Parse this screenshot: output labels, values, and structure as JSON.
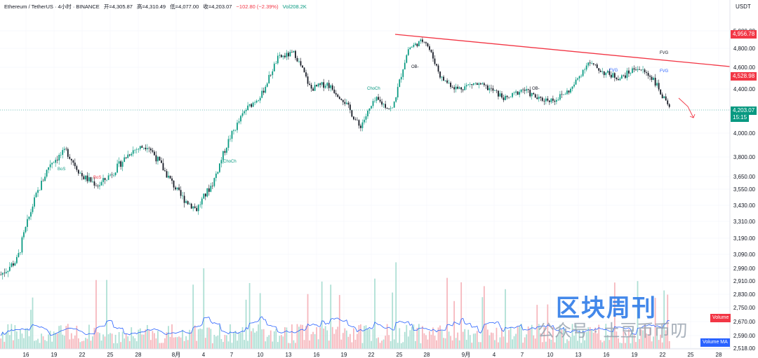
{
  "header": {
    "symbol": "Ethereum / TetherUS · 4小时 · BINANCE",
    "open": "开=4,305.87",
    "high": "高=4,310.49",
    "low": "低=4,077.00",
    "close": "收=4,203.07",
    "change": "−102.80 (−2.39%)",
    "volume": "Vol208.2K",
    "unit": "USDT"
  },
  "price_tags": {
    "upper": "4,956.78",
    "middle": "4,528.98",
    "current": "4,203.07",
    "countdown": "15:15"
  },
  "watermark": {
    "title": "区块周刊",
    "subtitle": "公众号 · 土豆币币叨"
  },
  "volume_labels": {
    "volume": "Volume",
    "volume_ma": "Volume MA"
  },
  "colors": {
    "up": "#089981",
    "down": "#f23645",
    "trendline": "#f23645",
    "volume_ma": "#2962ff"
  },
  "chart_data": {
    "type": "line",
    "series": [
      {
        "x": [
          "7/14",
          "7/16",
          "7/19",
          "7/21",
          "7/22",
          "7/24",
          "7/25",
          "7/27",
          "7/28",
          "7/30",
          "8/1",
          "8/2",
          "8/3",
          "8/5",
          "8/8",
          "8/10",
          "8/11",
          "8/13",
          "8/14",
          "8/15",
          "8/17",
          "8/19",
          "8/20",
          "8/21",
          "8/22",
          "8/23",
          "8/24",
          "8/26",
          "8/28",
          "8/30",
          "9/1",
          "9/3",
          "9/5",
          "9/7",
          "9/9",
          "9/11",
          "9/13",
          "9/15",
          "9/17",
          "9/19",
          "9/20",
          "9/22"
        ],
        "values": [
          2950,
          3050,
          3450,
          3750,
          3850,
          3650,
          3580,
          3700,
          3850,
          3900,
          3700,
          3500,
          3400,
          3600,
          3950,
          4200,
          4350,
          4700,
          4750,
          4400,
          4450,
          4300,
          4050,
          4300,
          4200,
          4800,
          4900,
          4500,
          4400,
          4450,
          4400,
          4300,
          4400,
          4300,
          4300,
          4400,
          4650,
          4550,
          4500,
          4600,
          4500,
          4203
        ]
      }
    ],
    "x_ticks": [
      "16",
      "19",
      "22",
      "25",
      "28",
      "8月",
      "4",
      "7",
      "10",
      "13",
      "16",
      "19",
      "22",
      "25",
      "28",
      "9月",
      "4",
      "7",
      "10",
      "13",
      "16",
      "19",
      "22",
      "25",
      "28"
    ],
    "y_ticks": [
      "5,000.00",
      "4,800.00",
      "4,600.00",
      "4,400.00",
      "4,200.00",
      "4,000.00",
      "3,800.00",
      "3,650.00",
      "3,550.00",
      "3,430.00",
      "3,310.00",
      "3,190.00",
      "3,090.00",
      "2,990.00",
      "2,910.00",
      "2,830.00",
      "2,750.00",
      "2,670.00",
      "2,590.00",
      "2,518.00"
    ],
    "ylim": [
      2518,
      5000
    ],
    "annotations": [
      "ChoCh",
      "ChoCh",
      "BoS",
      "BoS",
      "OB-",
      "OB-",
      "FVG",
      "FVG",
      "FVG"
    ]
  }
}
